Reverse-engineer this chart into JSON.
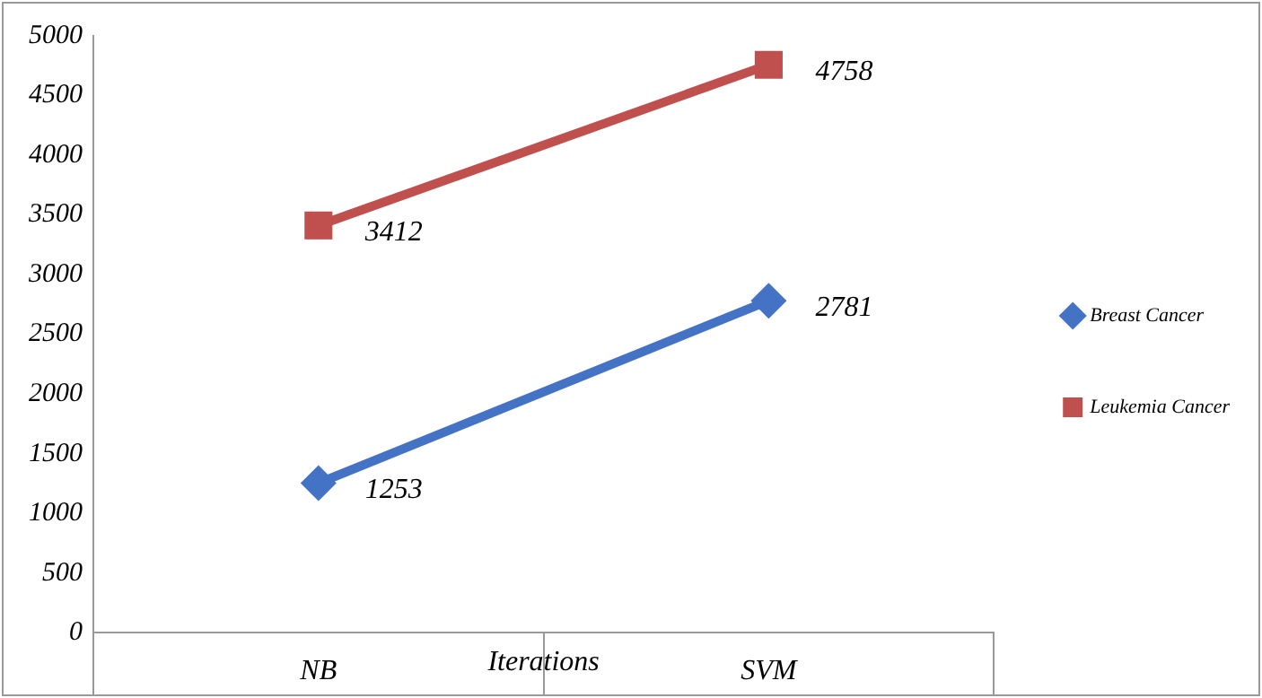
{
  "chart_data": {
    "type": "line",
    "xlabel": "Iterations",
    "categories": [
      "NB",
      "SVM"
    ],
    "series": [
      {
        "name": "Breast Cancer",
        "color": "#4472c4",
        "values": [
          1253,
          2781
        ],
        "marker": "diamond"
      },
      {
        "name": "Leukemia Cancer",
        "color": "#c0504d",
        "values": [
          3412,
          4758
        ],
        "marker": "square"
      }
    ],
    "ylim": [
      0,
      5000
    ],
    "yticks": [
      0,
      500,
      1000,
      1500,
      2000,
      2500,
      3000,
      3500,
      4000,
      4500,
      5000
    ],
    "grid": false,
    "legend": "right",
    "data_labels": true,
    "line_style": "solid"
  }
}
